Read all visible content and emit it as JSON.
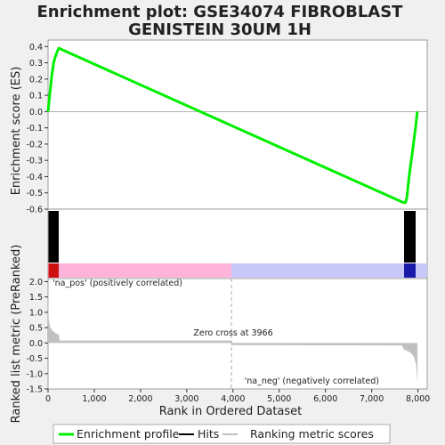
{
  "chart_data": {
    "title_lines": [
      "Enrichment plot: GSE34074 FIBROBLAST",
      "GENISTEIN 30UM 1H"
    ],
    "colors": {
      "enrichment": "#00ee00",
      "hits": "#000000",
      "pos_band": "#ffb3d9",
      "neg_band": "#c8c8f8",
      "pos_dark": "#cc1111",
      "neg_dark": "#1a1aaa",
      "metric": "#c0c0c0",
      "pos_label": "#cc0000",
      "neg_label": "#0000aa"
    },
    "es_panel": {
      "type": "line",
      "ylabel": "Enrichment score (ES)",
      "ylim": [
        -0.6,
        0.44
      ],
      "yticks": [
        -0.6,
        -0.5,
        -0.4,
        -0.3,
        -0.2,
        -0.1,
        0.0,
        0.1,
        0.2,
        0.3,
        0.4
      ],
      "ytick_labels": [
        "-0.6",
        "-0.5",
        "-0.4",
        "-0.3",
        "-0.2",
        "-0.1",
        "0.0",
        "0.1",
        "0.2",
        "0.3",
        "0.4"
      ],
      "x": [
        0,
        20,
        50,
        80,
        120,
        160,
        200,
        230,
        7650,
        7700,
        7730,
        7760,
        7800,
        7840,
        7880,
        7920,
        7960,
        7985
      ],
      "y": [
        0.0,
        0.06,
        0.14,
        0.22,
        0.3,
        0.34,
        0.37,
        0.39,
        -0.555,
        -0.56,
        -0.56,
        -0.53,
        -0.42,
        -0.33,
        -0.25,
        -0.16,
        -0.07,
        0.0
      ]
    },
    "hits_panel": {
      "hit_ranges": [
        [
          10,
          230
        ],
        [
          7700,
          7950
        ]
      ],
      "band_split": 3966
    },
    "metric_panel": {
      "type": "area",
      "ylabel": "Ranked list metric (PreRanked)",
      "xlabel": "Rank in Ordered Dataset",
      "ylim": [
        -1.5,
        2.1
      ],
      "yticks": [
        -1.5,
        -1.0,
        -0.5,
        0.0,
        0.5,
        1.0,
        1.5,
        2.0
      ],
      "ytick_labels": [
        "-1.5",
        "-1.0",
        "-0.5",
        "0.0",
        "0.5",
        "1.0",
        "1.5",
        "2.0"
      ],
      "x": [
        0,
        5,
        15,
        40,
        80,
        150,
        230,
        250,
        3966,
        3966,
        7650,
        7700,
        7800,
        7870,
        7920,
        7960,
        7985,
        7990
      ],
      "y": [
        2.05,
        1.3,
        0.75,
        0.55,
        0.42,
        0.33,
        0.28,
        0.08,
        0.08,
        -0.07,
        -0.08,
        -0.22,
        -0.28,
        -0.36,
        -0.48,
        -0.7,
        -1.2,
        -1.45
      ],
      "pos_label": "'na_pos' (positively correlated)",
      "neg_label": "'na_neg' (negatively correlated)",
      "zero_cross_label": "Zero cross at 3966",
      "zero_cross": 3966
    },
    "xaxis": {
      "range": [
        0,
        8200
      ],
      "ticks": [
        0,
        1000,
        2000,
        3000,
        4000,
        5000,
        6000,
        7000,
        8000
      ],
      "tick_labels": [
        "0",
        "1,000",
        "2,000",
        "3,000",
        "4,000",
        "5,000",
        "6,000",
        "7,000",
        "8,000"
      ]
    },
    "legend": {
      "placement": "bottom",
      "items": [
        "Enrichment profile",
        "Hits",
        "Ranking metric scores"
      ]
    }
  }
}
